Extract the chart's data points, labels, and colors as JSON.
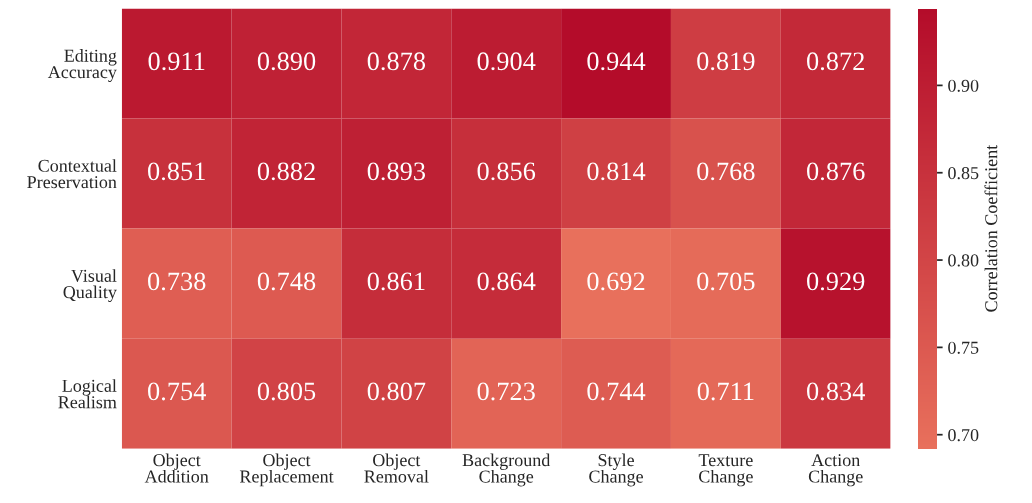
{
  "chart_data": {
    "type": "heatmap",
    "categories": [
      "Object\nAddition",
      "Object\nReplacement",
      "Object\nRemoval",
      "Background\nChange",
      "Style\nChange",
      "Texture\nChange",
      "Action\nChange"
    ],
    "y_categories": [
      "Editing\nAccuracy",
      "Contextual\nPreservation",
      "Visual\nQuality",
      "Logical\nRealism"
    ],
    "cells": [
      [
        0.911,
        0.89,
        0.878,
        0.904,
        0.944,
        0.819,
        0.872
      ],
      [
        0.851,
        0.882,
        0.893,
        0.856,
        0.814,
        0.768,
        0.876
      ],
      [
        0.738,
        0.748,
        0.861,
        0.864,
        0.692,
        0.705,
        0.929
      ],
      [
        0.754,
        0.805,
        0.807,
        0.723,
        0.744,
        0.711,
        0.834
      ]
    ],
    "cell_labels": [
      [
        "0.911",
        "0.890",
        "0.878",
        "0.904",
        "0.944",
        "0.819",
        "0.872"
      ],
      [
        "0.851",
        "0.882",
        "0.893",
        "0.856",
        "0.814",
        "0.768",
        "0.876"
      ],
      [
        "0.738",
        "0.748",
        "0.861",
        "0.864",
        "0.692",
        "0.705",
        "0.929"
      ],
      [
        "0.754",
        "0.805",
        "0.807",
        "0.723",
        "0.744",
        "0.711",
        "0.834"
      ]
    ],
    "colors": [
      "#e8705c",
      "#b40c2a"
    ],
    "cticks": [
      "0.70",
      "0.75",
      "0.80",
      "0.85",
      "0.90"
    ],
    "clabel": "Correlation Coefficient"
  }
}
